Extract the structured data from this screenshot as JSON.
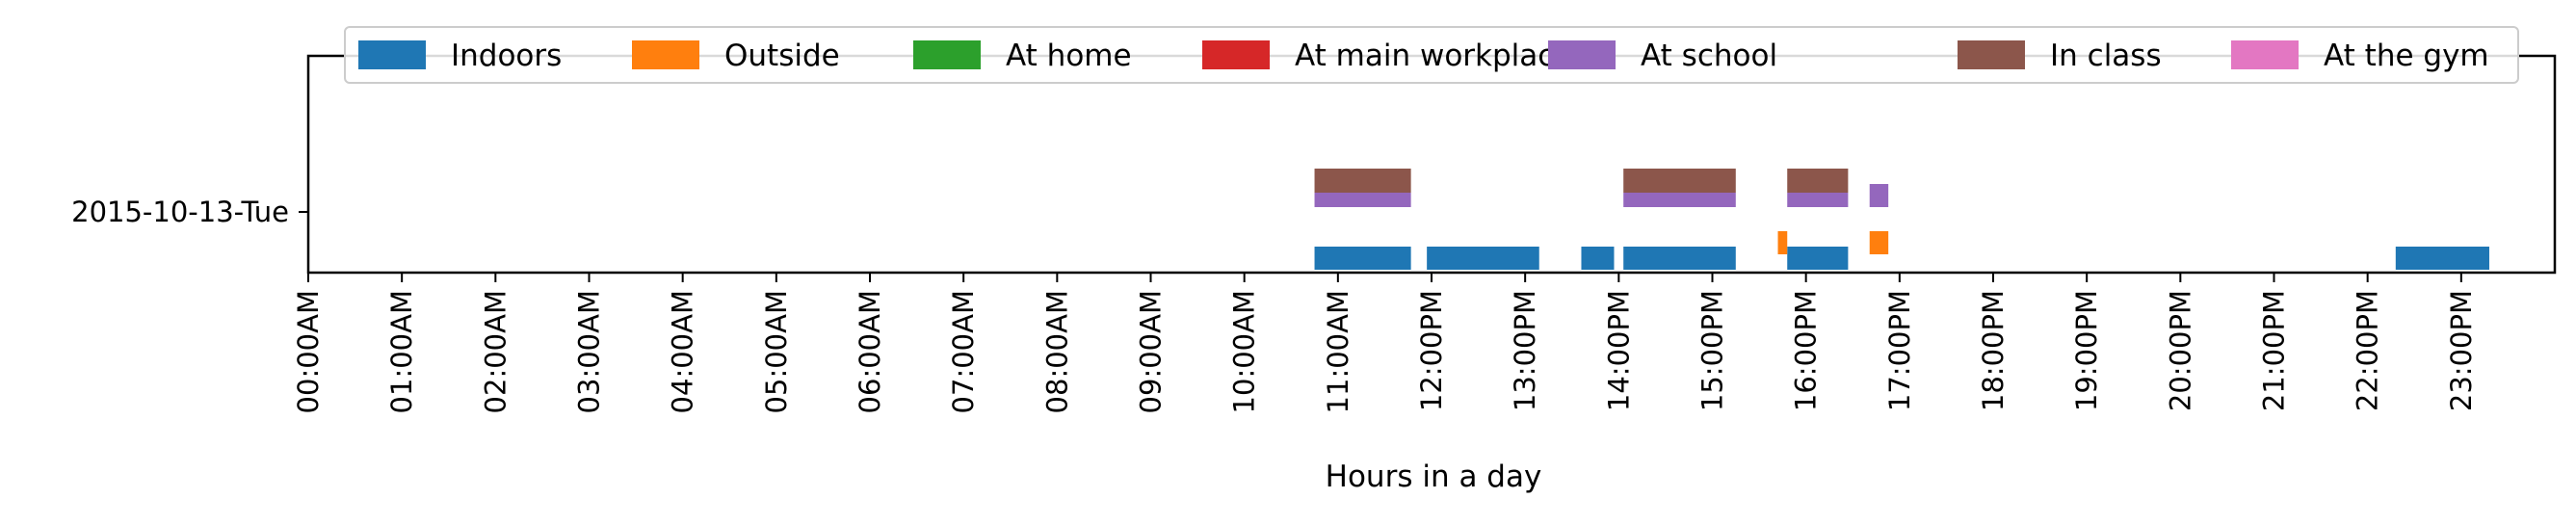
{
  "chart_data": {
    "type": "timeline",
    "title": "",
    "xlabel": "Hours in a day",
    "ylabel": "",
    "xlim": [
      0,
      24
    ],
    "y_category": "2015-10-13-Tue",
    "x_ticks": [
      "00:00AM",
      "01:00AM",
      "02:00AM",
      "03:00AM",
      "04:00AM",
      "05:00AM",
      "06:00AM",
      "07:00AM",
      "08:00AM",
      "09:00AM",
      "10:00AM",
      "11:00AM",
      "12:00PM",
      "13:00PM",
      "14:00PM",
      "15:00PM",
      "16:00PM",
      "17:00PM",
      "18:00PM",
      "19:00PM",
      "20:00PM",
      "21:00PM",
      "22:00PM",
      "23:00PM"
    ],
    "legend_position": "top",
    "series": [
      {
        "name": "Indoors",
        "color": "#1f77b4",
        "intervals": [
          [
            10.75,
            11.78
          ],
          [
            11.95,
            13.15
          ],
          [
            13.6,
            13.95
          ],
          [
            14.05,
            15.25
          ],
          [
            15.8,
            16.45
          ],
          [
            22.3,
            23.3
          ]
        ]
      },
      {
        "name": "Outside",
        "color": "#ff7f0e",
        "intervals": [
          [
            15.7,
            15.8
          ],
          [
            16.68,
            16.88
          ]
        ]
      },
      {
        "name": "At home",
        "color": "#2ca02c",
        "intervals": []
      },
      {
        "name": "At main workplace",
        "color": "#d62728",
        "intervals": []
      },
      {
        "name": "At school",
        "color": "#9467bd",
        "intervals": [
          [
            10.75,
            11.78
          ],
          [
            14.05,
            15.25
          ],
          [
            15.8,
            16.45
          ],
          [
            16.68,
            16.88
          ]
        ]
      },
      {
        "name": "In class",
        "color": "#8c564b",
        "intervals": [
          [
            10.75,
            11.78
          ],
          [
            14.05,
            15.25
          ],
          [
            15.8,
            16.45
          ]
        ]
      },
      {
        "name": "At the gym",
        "color": "#e377c2",
        "intervals": []
      }
    ]
  }
}
